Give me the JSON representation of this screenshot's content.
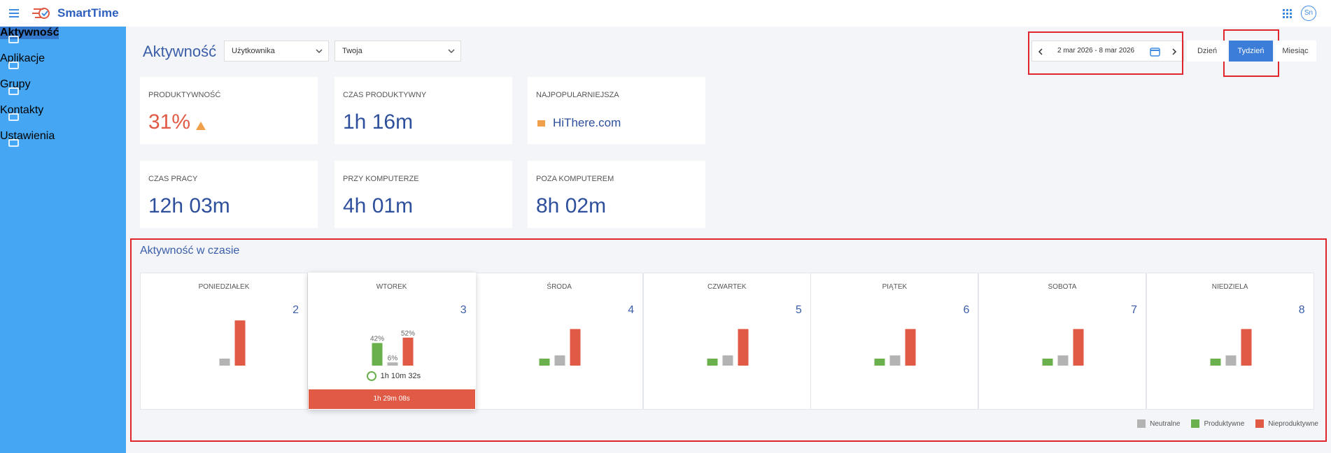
{
  "header": {
    "app_name": "SmartTime",
    "avatar": "Sn"
  },
  "sidebar": {
    "items": [
      "Aktywność",
      "Aplikacje",
      "Grupy",
      "Kontakty",
      "Ustawienia"
    ]
  },
  "toolbar": {
    "title": "Aktywność",
    "selects": [
      "Użytkownika",
      "Twoja"
    ],
    "date_range": "2 mar 2026 - 8 mar 2026",
    "periods": [
      "Dzień",
      "Tydzień",
      "Miesiąc"
    ]
  },
  "cards": [
    {
      "label": "PRODUKTYWNOŚĆ",
      "value": "31%"
    },
    {
      "label": "CZAS PRODUKTYWNY",
      "value": "1h 16m"
    },
    {
      "label": "NAJPOPULARNIEJSZA",
      "value": "HiThere.com"
    },
    {
      "label": "CZAS PRACY",
      "value": "12h 03m"
    },
    {
      "label": "PRZY KOMPUTERZE",
      "value": "4h 01m"
    },
    {
      "label": "POZA KOMPUTEREM",
      "value": "8h 02m"
    }
  ],
  "activity": {
    "title": "Aktywność w czasie",
    "series": [
      {
        "name": "Neutralne",
        "color": "#b3b3b3"
      },
      {
        "name": "Produktywne",
        "color": "#6ab04c"
      },
      {
        "name": "Nieproduktywne",
        "color": "#e05a45"
      }
    ],
    "days": [
      {
        "name": "PONIEDZIAŁEK",
        "date": "2",
        "values": [
          13,
          0,
          84
        ]
      },
      {
        "name": "WTOREK",
        "date": "3",
        "values": [
          6,
          42,
          52
        ],
        "value_labels": [
          "6%",
          "42%",
          "52%"
        ],
        "duration": "1h 10m 32s",
        "total": "1h 29m 08s"
      },
      {
        "name": "ŚRODA",
        "date": "4",
        "values": [
          19,
          13,
          68
        ]
      },
      {
        "name": "CZWARTEK",
        "date": "5",
        "values": [
          19,
          13,
          68
        ]
      },
      {
        "name": "PIĄTEK",
        "date": "6",
        "values": [
          19,
          13,
          68
        ]
      },
      {
        "name": "SOBOTA",
        "date": "7",
        "values": [
          19,
          13,
          68
        ]
      },
      {
        "name": "NIEDZIELA",
        "date": "8",
        "values": [
          19,
          13,
          68
        ]
      }
    ]
  }
}
